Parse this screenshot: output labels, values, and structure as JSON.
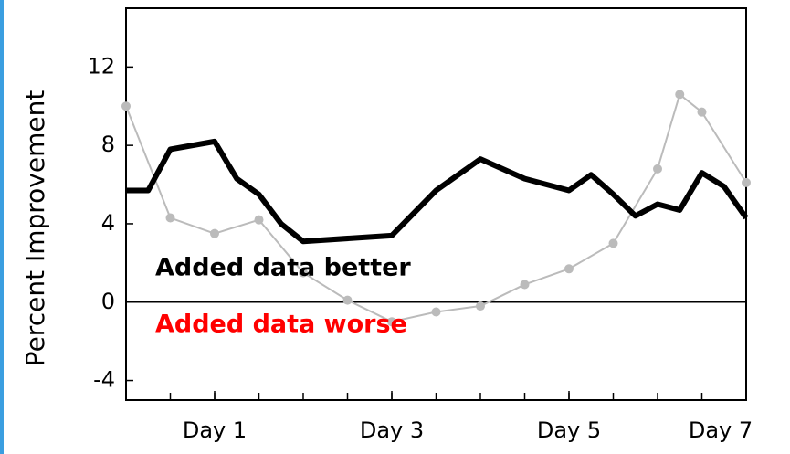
{
  "chart_data": {
    "type": "line",
    "y_label": "Percent Improvement",
    "annotations": [
      {
        "text": "Added data better",
        "color": "#000000"
      },
      {
        "text": "Added data worse",
        "color": "#ff0000"
      }
    ],
    "xlim": [
      0,
      7
    ],
    "xticks": [
      {
        "value": 1,
        "label": "Day 1"
      },
      {
        "value": 3,
        "label": "Day 3"
      },
      {
        "value": 5,
        "label": "Day 5"
      },
      {
        "value": 7,
        "label": "Day 7"
      }
    ],
    "ylim": [
      -5,
      15
    ],
    "yticks": [
      -4,
      0,
      4,
      8,
      12
    ],
    "series": [
      {
        "color": "#000000",
        "width": 6,
        "markers": false,
        "x": [
          0,
          0.25,
          0.5,
          1,
          1.25,
          1.5,
          1.75,
          2,
          3,
          3.5,
          4,
          4.5,
          5,
          5.25,
          5.5,
          5.75,
          6,
          6.25,
          6.5,
          6.75,
          7
        ],
        "values": [
          5.7,
          5.7,
          7.8,
          8.2,
          6.3,
          5.5,
          4.0,
          3.1,
          3.4,
          5.7,
          7.3,
          6.3,
          5.7,
          6.5,
          5.5,
          4.4,
          5.0,
          4.7,
          6.6,
          5.9,
          4.3
        ]
      },
      {
        "color": "#bbbbbb",
        "width": 2,
        "markers": true,
        "x": [
          0,
          0.5,
          1,
          1.5,
          2,
          2.5,
          3,
          3.5,
          4,
          4.5,
          5,
          5.5,
          6,
          6.25,
          6.5,
          7
        ],
        "values": [
          10.0,
          4.3,
          3.5,
          4.2,
          1.5,
          0.1,
          -1.0,
          -0.5,
          -0.2,
          0.9,
          1.7,
          3.0,
          6.8,
          10.6,
          9.7,
          6.1
        ]
      }
    ]
  }
}
